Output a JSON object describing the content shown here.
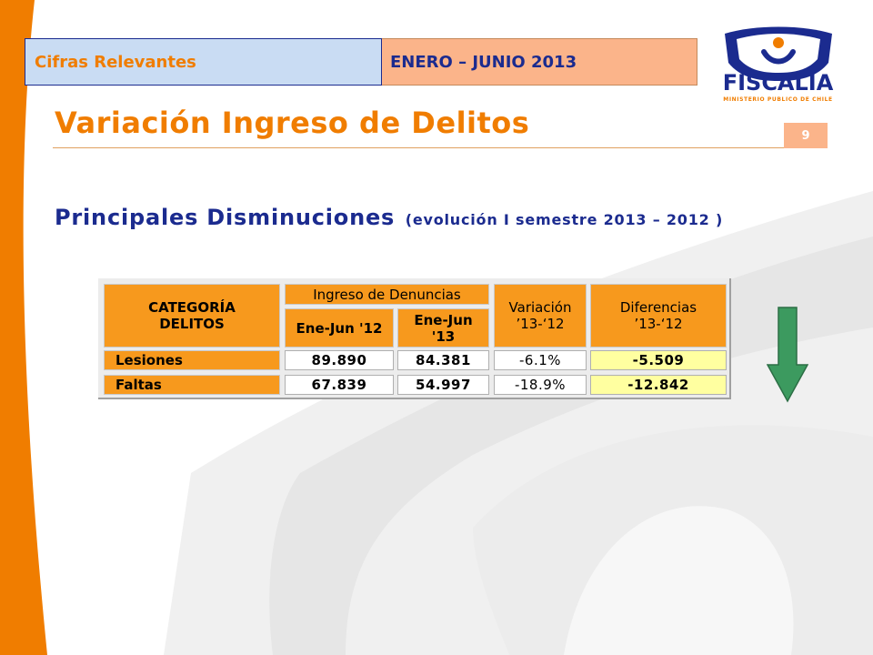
{
  "header": {
    "section_label": "Cifras Relevantes",
    "period_label": "ENERO – JUNIO 2013"
  },
  "logo": {
    "name": "FISCALIA",
    "subtitle": "MINISTERIO PUBLICO DE CHILE"
  },
  "page": {
    "title": "Variación Ingreso de Delitos",
    "number": "9",
    "subtitle_main": "Principales Disminuciones",
    "subtitle_paren": "(evolución I semestre 2013 – 2012 )"
  },
  "table": {
    "headers": {
      "category": "CATEGORÍA DELITOS",
      "ingreso_group": "Ingreso de Denuncias",
      "col_2012": "Ene-Jun '12",
      "col_2013": "Ene-Jun '13",
      "variacion": "Variación ’13-‘12",
      "diferencias": "Diferencias ’13-‘12"
    },
    "rows": [
      {
        "category": "Lesiones",
        "ene_jun_12": "89.890",
        "ene_jun_13": "84.381",
        "variacion": "-6.1%",
        "diferencia": "-5.509"
      },
      {
        "category": "Faltas",
        "ene_jun_12": "67.839",
        "ene_jun_13": "54.997",
        "variacion": "-18.9%",
        "diferencia": "-12.842"
      }
    ]
  },
  "indicator": {
    "icon": "arrow-down-icon",
    "color": "#3c9a5f"
  },
  "colors": {
    "accent_orange": "#f07d00",
    "navy": "#1b2b8f",
    "table_orange": "#f7991d",
    "highlight_yellow": "#ffffa0"
  }
}
